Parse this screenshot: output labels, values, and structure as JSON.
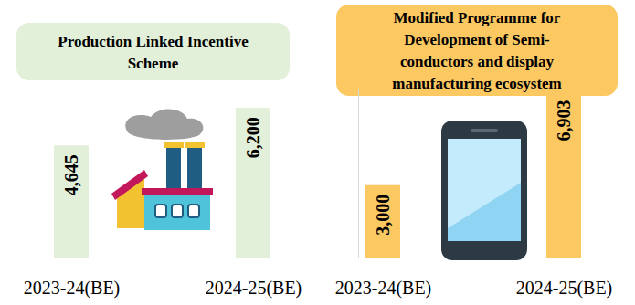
{
  "chart_data": [
    {
      "type": "bar",
      "title": "Production Linked Incentive\nScheme",
      "categories": [
        "2023-24(BE)",
        "2024-25(BE)"
      ],
      "values": [
        4645,
        6200
      ],
      "value_labels": [
        "4,645",
        "6,200"
      ],
      "color": "#e2efd9",
      "ylim": [
        0,
        7000
      ],
      "data_labels": true,
      "tick_labels": "x"
    },
    {
      "type": "bar",
      "title": "Modified Programme for\nDevelopment of Semi-\nconductors and display\nmanufacturing ecosystem",
      "categories": [
        "2023-24(BE)",
        "2024-25(BE)"
      ],
      "values": [
        3000,
        6903
      ],
      "value_labels": [
        "3,000",
        "6,903"
      ],
      "color": "#fcc862",
      "ylim": [
        0,
        7000
      ],
      "data_labels": true,
      "tick_labels": "x"
    }
  ]
}
